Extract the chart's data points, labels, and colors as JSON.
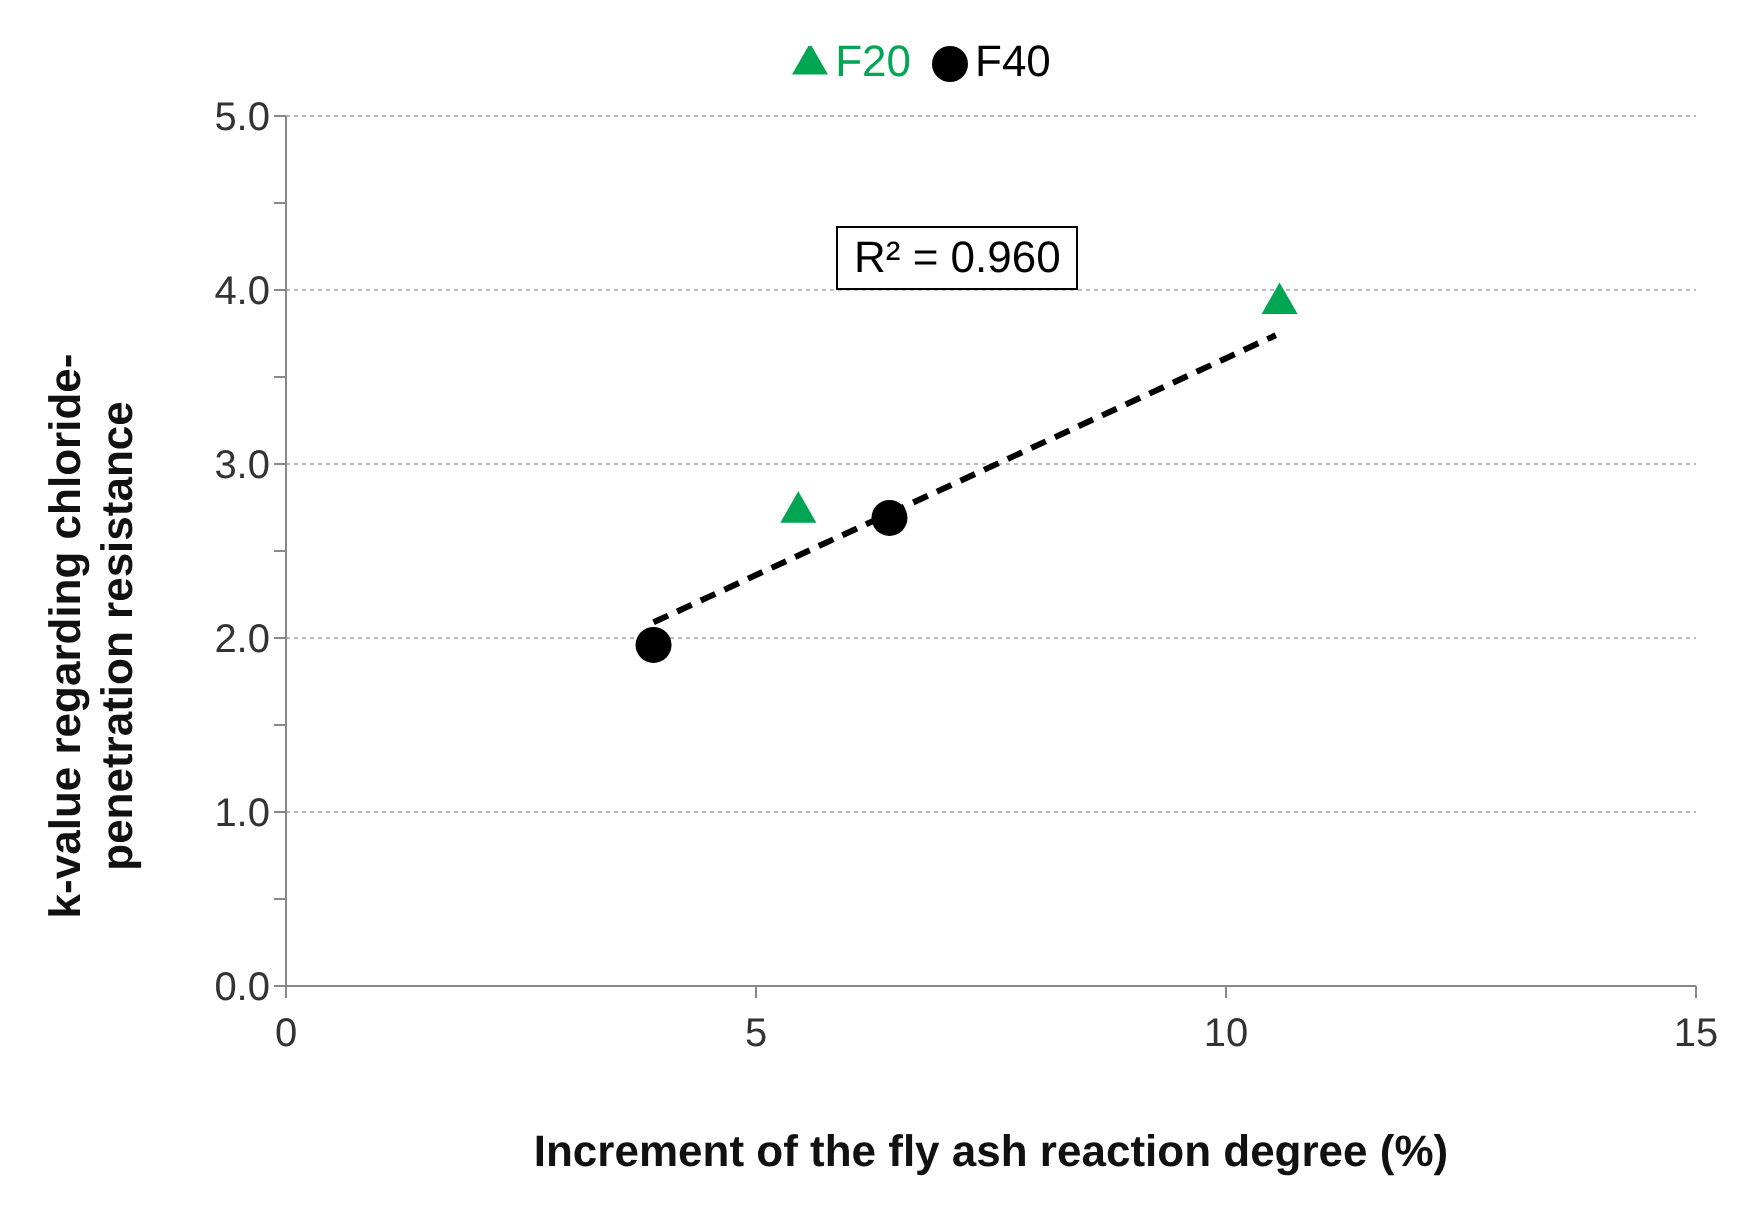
{
  "chart_data": {
    "type": "scatter",
    "xlabel": "Increment of the fly ash reaction degree (%)",
    "ylabel": "k-value regarding chloride-penetration resistance",
    "xlim": [
      0,
      15
    ],
    "xticks": [
      0,
      5,
      10,
      15
    ],
    "ylim": [
      0,
      5
    ],
    "yticks": [
      {
        "value": 0,
        "label": "0.0"
      },
      {
        "value": 0.5,
        "label": null
      },
      {
        "value": 1,
        "label": "1.0"
      },
      {
        "value": 1.5,
        "label": null
      },
      {
        "value": 2,
        "label": "2.0"
      },
      {
        "value": 2.5,
        "label": null
      },
      {
        "value": 3,
        "label": "3.0"
      },
      {
        "value": 3.5,
        "label": null
      },
      {
        "value": 4,
        "label": "4.0"
      },
      {
        "value": 4.5,
        "label": null
      },
      {
        "value": 5,
        "label": "5.0"
      }
    ],
    "grid": "y",
    "legend": "top",
    "annotations": [
      "R² = 0.960"
    ],
    "series": [
      {
        "name": "F20",
        "marker": "triangle",
        "color": "#00a651",
        "x": [
          5.45,
          10.57
        ],
        "values": [
          2.74,
          3.94
        ]
      },
      {
        "name": "F40",
        "marker": "circle",
        "color": "#000000",
        "x": [
          3.91,
          6.42
        ],
        "values": [
          1.96,
          2.69
        ]
      },
      {
        "type": "line",
        "marker": "none",
        "line_style": "dashed",
        "color": "#000000",
        "x": [
          3.91,
          10.53
        ],
        "values": [
          2.09,
          3.74
        ]
      }
    ]
  }
}
